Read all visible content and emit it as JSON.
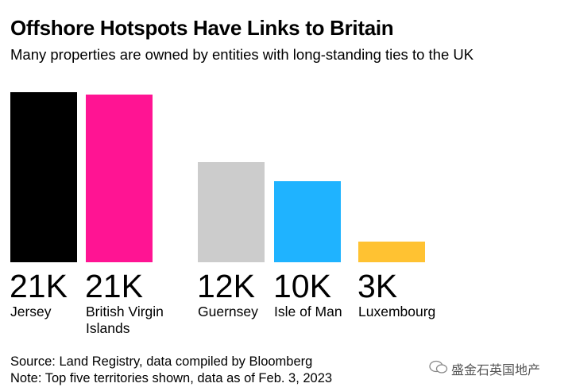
{
  "chart_data": {
    "type": "bar",
    "title": "Offshore Hotspots Have Links to Britain",
    "subtitle": "Many properties are owned by entities with long-standing ties to the UK",
    "categories": [
      "Jersey",
      "British Virgin Islands",
      "Guernsey",
      "Isle of Man",
      "Luxembourg"
    ],
    "values": [
      21,
      20.7,
      12.4,
      10,
      2.6
    ],
    "value_labels": [
      "21K",
      "21K",
      "12K",
      "10K",
      "3K"
    ],
    "colors": [
      "#000000",
      "#ff1493",
      "#cccccc",
      "#1fb3ff",
      "#ffc232"
    ],
    "source": "Source: Land Registry, data compiled by Bloomberg",
    "note": "Note: Top five territories shown, data as of Feb. 3, 2023",
    "watermark": "盛金石英国地产"
  }
}
